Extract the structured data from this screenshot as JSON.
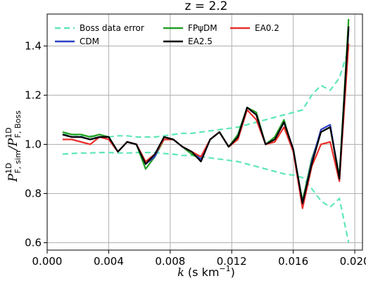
{
  "chart_data": {
    "type": "line",
    "title": "z = 2.2",
    "xlabel_var": "k",
    "xlabel_unit": " (s km",
    "xlabel_exp": "−1",
    "xlabel_close": ")",
    "ylabel_num_sup": "1D",
    "ylabel_num_sub": "F, sim",
    "ylabel_den_sup": "1D",
    "ylabel_den_sub": "F, Boss",
    "xlim": [
      0.0,
      0.0205
    ],
    "ylim": [
      0.57,
      1.53
    ],
    "xticks": [
      0.0,
      0.004,
      0.008,
      0.012,
      0.016,
      0.02
    ],
    "xtick_labels": [
      "0.000",
      "0.004",
      "0.008",
      "0.012",
      "0.016",
      "0.020"
    ],
    "yticks": [
      0.6,
      0.8,
      1.0,
      1.2,
      1.4
    ],
    "ytick_labels": [
      "0.6",
      "0.8",
      "1.0",
      "1.2",
      "1.4"
    ],
    "grid": true,
    "legend_position": "top",
    "x": [
      0.001,
      0.0016,
      0.0022,
      0.0028,
      0.0034,
      0.004,
      0.0046,
      0.0052,
      0.0058,
      0.0064,
      0.007,
      0.0076,
      0.0082,
      0.0088,
      0.0094,
      0.01,
      0.0106,
      0.0112,
      0.0118,
      0.0124,
      0.013,
      0.0136,
      0.0142,
      0.0148,
      0.0154,
      0.016,
      0.0166,
      0.0172,
      0.0178,
      0.0184,
      0.019,
      0.0196
    ],
    "error_band": {
      "name": "Boss data error",
      "color": "#5ee8b4",
      "upper": [
        1.04,
        1.04,
        1.035,
        1.035,
        1.03,
        1.03,
        1.035,
        1.035,
        1.03,
        1.03,
        1.03,
        1.035,
        1.04,
        1.045,
        1.045,
        1.05,
        1.055,
        1.06,
        1.065,
        1.07,
        1.08,
        1.09,
        1.1,
        1.11,
        1.12,
        1.13,
        1.14,
        1.2,
        1.24,
        1.22,
        1.27,
        1.39
      ],
      "lower": [
        0.96,
        0.963,
        0.965,
        0.965,
        0.967,
        0.967,
        0.965,
        0.965,
        0.967,
        0.967,
        0.967,
        0.963,
        0.96,
        0.955,
        0.955,
        0.95,
        0.945,
        0.94,
        0.935,
        0.93,
        0.92,
        0.91,
        0.9,
        0.89,
        0.88,
        0.875,
        0.865,
        0.82,
        0.77,
        0.745,
        0.78,
        0.6
      ]
    },
    "series": [
      {
        "name": "CDM",
        "color": "#2b3fc4",
        "values": [
          1.04,
          1.03,
          1.03,
          1.02,
          1.03,
          1.03,
          0.97,
          1.01,
          1.0,
          0.92,
          0.95,
          1.03,
          1.02,
          0.99,
          0.97,
          0.94,
          1.02,
          1.05,
          0.99,
          1.03,
          1.15,
          1.12,
          1.0,
          1.02,
          1.09,
          0.98,
          0.76,
          0.93,
          1.06,
          1.08,
          0.86,
          1.47
        ]
      },
      {
        "name": "FPψDM",
        "color": "#22a022",
        "values": [
          1.05,
          1.04,
          1.04,
          1.03,
          1.04,
          1.03,
          0.97,
          1.01,
          1.0,
          0.9,
          0.95,
          1.02,
          1.02,
          0.99,
          0.96,
          0.94,
          1.02,
          1.05,
          0.99,
          1.04,
          1.15,
          1.13,
          1.0,
          1.03,
          1.1,
          0.97,
          0.77,
          0.94,
          1.05,
          1.07,
          0.87,
          1.51
        ]
      },
      {
        "name": "EA2.5",
        "color": "#000000",
        "values": [
          1.04,
          1.03,
          1.03,
          1.02,
          1.03,
          1.03,
          0.97,
          1.01,
          1.0,
          0.92,
          0.96,
          1.03,
          1.02,
          0.99,
          0.97,
          0.93,
          1.02,
          1.05,
          0.99,
          1.03,
          1.15,
          1.12,
          1.0,
          1.02,
          1.09,
          0.98,
          0.76,
          0.92,
          1.05,
          1.07,
          0.86,
          1.48
        ]
      },
      {
        "name": "EA0.2",
        "color": "#e8302c",
        "values": [
          1.02,
          1.02,
          1.01,
          1.0,
          1.03,
          1.02,
          0.97,
          1.01,
          1.0,
          0.93,
          0.96,
          1.02,
          1.02,
          0.99,
          0.97,
          0.95,
          1.02,
          1.05,
          0.99,
          1.02,
          1.14,
          1.1,
          1.0,
          1.01,
          1.07,
          0.97,
          0.74,
          0.91,
          1.0,
          1.01,
          0.85,
          1.41
        ]
      }
    ]
  }
}
